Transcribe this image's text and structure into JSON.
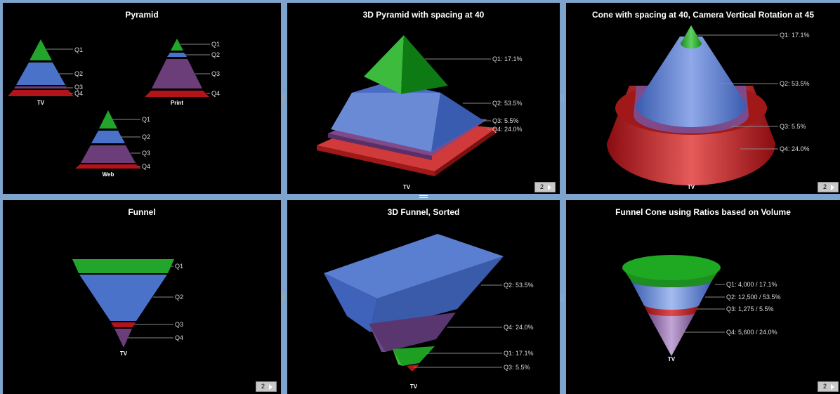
{
  "colors": {
    "green": "#22a52a",
    "blue": "#4a72c8",
    "purple": "#6b3e7a",
    "red": "#b3141a",
    "background": "#000000",
    "frame": "#7ea3cc"
  },
  "panels": {
    "pyramid": {
      "title": "Pyramid",
      "labels": {
        "q1": "Q1",
        "q2": "Q2",
        "q3": "Q3",
        "q4": "Q4"
      },
      "chart_labels": {
        "tv": "TV",
        "print": "Print",
        "web": "Web"
      }
    },
    "pyramid3d": {
      "title": "3D Pyramid with spacing at 40",
      "labels": {
        "q1": "Q1: 17.1%",
        "q2": "Q2: 53.5%",
        "q3": "Q3: 5.5%",
        "q4": "Q4: 24.0%"
      },
      "xlabel": "TV",
      "page": "2"
    },
    "cone": {
      "title": "Cone with spacing at 40, Camera Vertical Rotation at 45",
      "labels": {
        "q1": "Q1: 17.1%",
        "q2": "Q2: 53.5%",
        "q3": "Q3: 5.5%",
        "q4": "Q4: 24.0%"
      },
      "xlabel": "TV",
      "page": "2"
    },
    "funnel": {
      "title": "Funnel",
      "labels": {
        "q1": "Q1",
        "q2": "Q2",
        "q3": "Q3",
        "q4": "Q4"
      },
      "xlabel": "TV",
      "page": "2"
    },
    "funnel3d": {
      "title": "3D Funnel, Sorted",
      "labels": {
        "q2": "Q2: 53.5%",
        "q4": "Q4: 24.0%",
        "q1": "Q1: 17.1%",
        "q3": "Q3: 5.5%"
      },
      "xlabel": "TV"
    },
    "funnelcone": {
      "title": "Funnel Cone using Ratios based on Volume",
      "labels": {
        "q1": "Q1: 4,000 / 17.1%",
        "q2": "Q2: 12,500 / 53.5%",
        "q3": "Q3: 1,275 / 5.5%",
        "q4": "Q4: 5,600 / 24.0%"
      },
      "xlabel": "TV",
      "page": "2"
    }
  },
  "chart_data": [
    {
      "type": "pyramid",
      "title": "Pyramid",
      "series": [
        {
          "name": "TV",
          "categories": [
            "Q1",
            "Q2",
            "Q3",
            "Q4"
          ]
        },
        {
          "name": "Print",
          "categories": [
            "Q1",
            "Q2",
            "Q3",
            "Q4"
          ]
        },
        {
          "name": "Web",
          "categories": [
            "Q1",
            "Q2",
            "Q3",
            "Q4"
          ]
        }
      ]
    },
    {
      "type": "pyramid",
      "title": "3D Pyramid with spacing at 40",
      "categories": [
        "Q1",
        "Q2",
        "Q3",
        "Q4"
      ],
      "values": [
        17.1,
        53.5,
        5.5,
        24.0
      ],
      "xlabel": "TV"
    },
    {
      "type": "cone",
      "title": "Cone with spacing at 40, Camera Vertical Rotation at 45",
      "categories": [
        "Q1",
        "Q2",
        "Q3",
        "Q4"
      ],
      "values": [
        17.1,
        53.5,
        5.5,
        24.0
      ],
      "xlabel": "TV"
    },
    {
      "type": "funnel",
      "title": "Funnel",
      "categories": [
        "Q1",
        "Q2",
        "Q3",
        "Q4"
      ],
      "xlabel": "TV"
    },
    {
      "type": "funnel",
      "title": "3D Funnel, Sorted",
      "categories": [
        "Q2",
        "Q4",
        "Q1",
        "Q3"
      ],
      "values": [
        53.5,
        24.0,
        17.1,
        5.5
      ],
      "xlabel": "TV"
    },
    {
      "type": "funnel",
      "title": "Funnel Cone using Ratios based on Volume",
      "categories": [
        "Q1",
        "Q2",
        "Q3",
        "Q4"
      ],
      "volumes": [
        4000,
        12500,
        1275,
        5600
      ],
      "values": [
        17.1,
        53.5,
        5.5,
        24.0
      ],
      "xlabel": "TV"
    }
  ]
}
